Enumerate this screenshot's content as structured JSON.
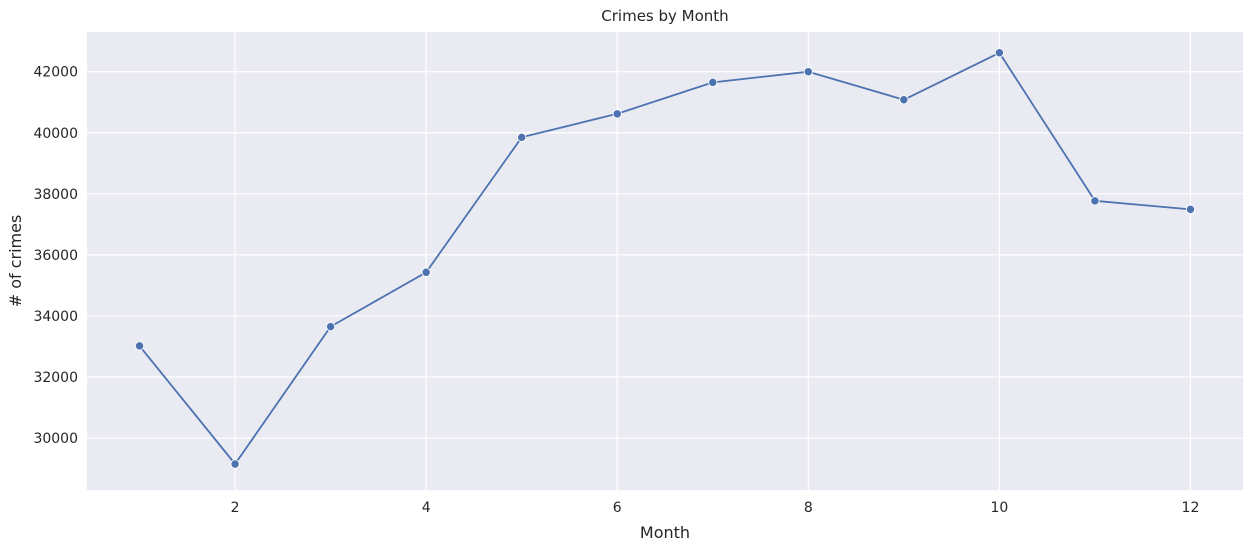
{
  "chart_data": {
    "type": "line",
    "title": "Crimes by Month",
    "xlabel": "Month",
    "ylabel": "# of crimes",
    "xlim": [
      0.45,
      12.55
    ],
    "ylim": [
      28300,
      43300
    ],
    "xticks": [
      2,
      4,
      6,
      8,
      10,
      12
    ],
    "xtick_labels": [
      "2",
      "4",
      "6",
      "8",
      "10",
      "12"
    ],
    "yticks": [
      30000,
      32000,
      34000,
      36000,
      38000,
      40000,
      42000
    ],
    "ytick_labels": [
      "30000",
      "32000",
      "34000",
      "36000",
      "38000",
      "40000",
      "42000"
    ],
    "grid": true,
    "series": [
      {
        "x": [
          1,
          2,
          3,
          4,
          5,
          6,
          7,
          8,
          9,
          10,
          11,
          12
        ],
        "values": [
          33020,
          29150,
          33650,
          35430,
          39850,
          40620,
          41650,
          42000,
          41080,
          42620,
          37770,
          37490
        ]
      }
    ],
    "colors": {
      "line": "#4c72b0",
      "marker": "#4c72b0",
      "background": "#eaeaf2",
      "grid": "#ffffff"
    }
  }
}
